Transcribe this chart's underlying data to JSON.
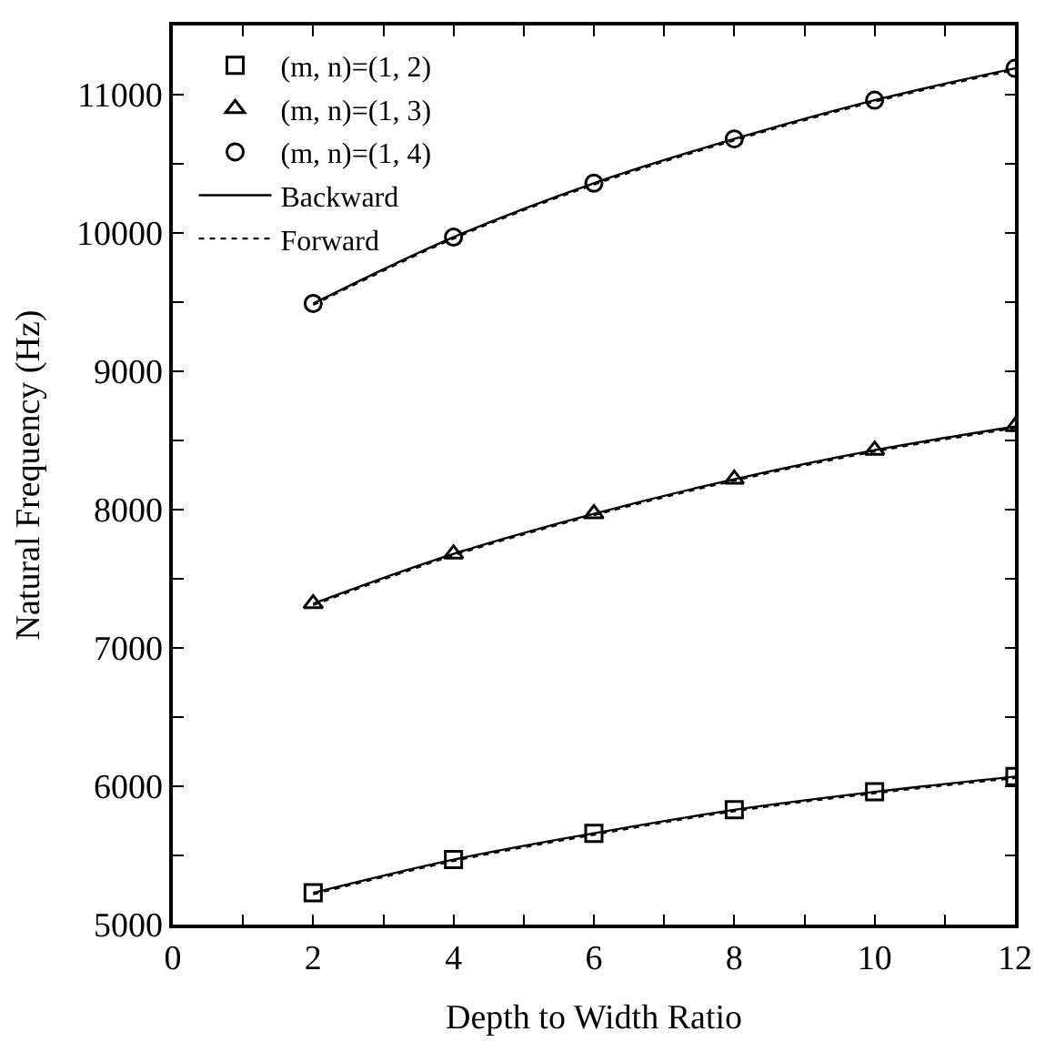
{
  "chart_data": {
    "type": "line",
    "xlabel": "Depth to Width Ratio",
    "ylabel": "Natural Frequency (Hz)",
    "x": [
      2,
      4,
      6,
      8,
      10,
      12
    ],
    "xlim": [
      0,
      12
    ],
    "xticks": [
      0,
      {
        "value": 1,
        "label": null
      },
      2,
      {
        "value": 3,
        "label": null
      },
      4,
      {
        "value": 5,
        "label": null
      },
      6,
      {
        "value": 7,
        "label": null
      },
      8,
      {
        "value": 9,
        "label": null
      },
      10,
      {
        "value": 11,
        "label": null
      },
      12
    ],
    "ylim": [
      5000,
      11500
    ],
    "yticks": [
      5000,
      {
        "value": 5500,
        "label": null
      },
      6000,
      {
        "value": 6500,
        "label": null
      },
      7000,
      {
        "value": 7500,
        "label": null
      },
      8000,
      {
        "value": 8500,
        "label": null
      },
      9000,
      {
        "value": 9500,
        "label": null
      },
      10000,
      {
        "value": 10500,
        "label": null
      },
      11000,
      {
        "value": 11500,
        "label": null
      }
    ],
    "legend": "top left",
    "series": [
      {
        "name": "(m, n)=(1, 2)",
        "type": "scatter",
        "marker": "square",
        "color": "#000000",
        "values": [
          5230,
          5470,
          5660,
          5830,
          5960,
          6070
        ]
      },
      {
        "name": "(m, n)=(1, 3)",
        "type": "scatter",
        "marker": "triangle",
        "color": "#000000",
        "values": [
          7320,
          7680,
          7970,
          8220,
          8430,
          8600
        ]
      },
      {
        "name": "(m, n)=(1, 4)",
        "type": "scatter",
        "marker": "circle",
        "color": "#000000",
        "values": [
          9490,
          9970,
          10360,
          10680,
          10960,
          11190
        ]
      },
      {
        "name": "Backward",
        "line_style": "solid",
        "color": "#000000",
        "values": [
          5230,
          5470,
          5660,
          5830,
          5960,
          6070
        ]
      },
      {
        "line_style": "solid",
        "color": "#000000",
        "values": [
          7320,
          7680,
          7970,
          8220,
          8430,
          8600
        ]
      },
      {
        "line_style": "solid",
        "color": "#000000",
        "values": [
          9490,
          9970,
          10360,
          10680,
          10960,
          11190
        ]
      },
      {
        "name": "Forward",
        "line_style": "dotted",
        "color": "#000000",
        "values": [
          5220,
          5460,
          5650,
          5820,
          5950,
          6060
        ]
      },
      {
        "line_style": "dotted",
        "color": "#000000",
        "values": [
          7310,
          7670,
          7960,
          8210,
          8420,
          8590
        ]
      },
      {
        "line_style": "dotted",
        "color": "#000000",
        "values": [
          9480,
          9960,
          10350,
          10670,
          10950,
          11180
        ]
      }
    ]
  }
}
